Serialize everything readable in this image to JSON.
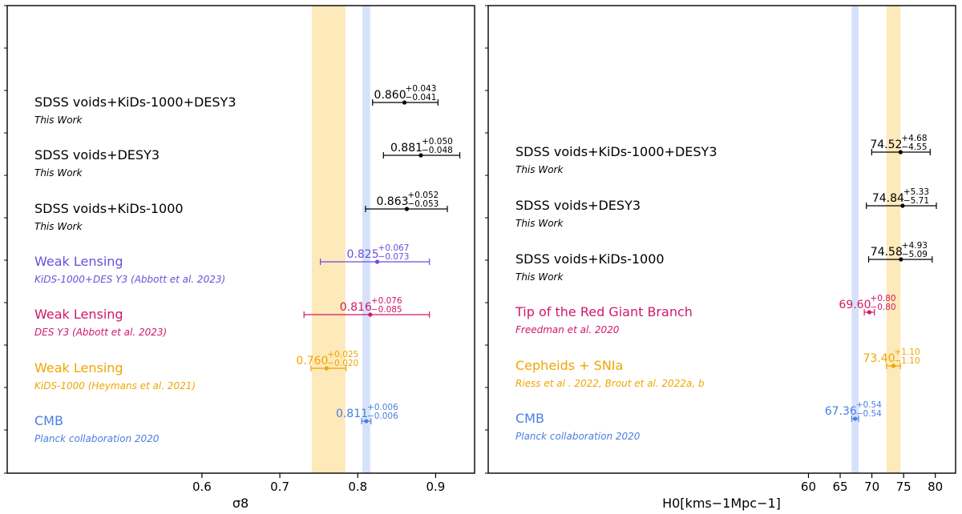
{
  "chart_data": [
    {
      "type": "scatter",
      "xlabel": "σ8",
      "xticks": [
        0.6,
        0.7,
        0.8,
        0.9
      ],
      "xlim": [
        0.35,
        0.95
      ],
      "bands": [
        {
          "center": 0.7625,
          "low": 0.741,
          "high": 0.784,
          "color": "#fde9b9"
        },
        {
          "center": 0.811,
          "low": 0.806,
          "high": 0.816,
          "color": "#d6e2fb"
        }
      ],
      "points": [
        {
          "label": "SDSS voids+KiDs-1000+DESY3",
          "reference": "This Work",
          "value": 0.86,
          "value_text": "0.860",
          "plus": "+0.043",
          "minus": "−0.041",
          "low": 0.819,
          "high": 0.903,
          "color": "#000000"
        },
        {
          "label": "SDSS voids+DESY3",
          "reference": "This Work",
          "value": 0.881,
          "value_text": "0.881",
          "plus": "+0.050",
          "minus": "−0.048",
          "low": 0.833,
          "high": 0.931,
          "color": "#000000"
        },
        {
          "label": "SDSS voids+KiDs-1000",
          "reference": "This Work",
          "value": 0.863,
          "value_text": "0.863",
          "plus": "+0.052",
          "minus": "−0.053",
          "low": 0.81,
          "high": 0.915,
          "color": "#000000"
        },
        {
          "label": "Weak Lensing",
          "reference": "KiDS-1000+DES Y3 (Abbott et al. 2023)",
          "value": 0.825,
          "value_text": "0.825",
          "plus": "+0.067",
          "minus": "−0.073",
          "low": 0.752,
          "high": 0.892,
          "color": "#6a4fdc"
        },
        {
          "label": "Weak Lensing",
          "reference": "DES Y3 (Abbott et al. 2023)",
          "value": 0.816,
          "value_text": "0.816",
          "plus": "+0.076",
          "minus": "−0.085",
          "low": 0.731,
          "high": 0.892,
          "color": "#d0186a"
        },
        {
          "label": "Weak Lensing",
          "reference": "KiDS-1000 (Heymans et al. 2021)",
          "value": 0.76,
          "value_text": "0.760",
          "plus": "+0.025",
          "minus": "−0.020",
          "low": 0.74,
          "high": 0.785,
          "color": "#f0a500"
        },
        {
          "label": "CMB",
          "reference": "Planck collaboration 2020",
          "value": 0.811,
          "value_text": "0.811",
          "plus": "+0.006",
          "minus": "−0.006",
          "low": 0.805,
          "high": 0.817,
          "color": "#4a7fe0"
        }
      ]
    },
    {
      "type": "scatter",
      "xlabel": "H0[kms−1Mpc−1]",
      "xticks": [
        60,
        65,
        70,
        75,
        80
      ],
      "xlim": [
        9.5,
        83.2
      ],
      "bands": [
        {
          "center": 67.36,
          "low": 66.8,
          "high": 67.9,
          "color": "#d6e2fb"
        },
        {
          "center": 73.4,
          "low": 72.3,
          "high": 74.5,
          "color": "#fde9b9"
        }
      ],
      "points": [
        {
          "label": "SDSS voids+KiDs-1000+DESY3",
          "reference": "This Work",
          "value": 74.52,
          "value_text": "74.52",
          "plus": "+4.68",
          "minus": "−4.55",
          "low": 69.97,
          "high": 79.2,
          "color": "#000000"
        },
        {
          "label": "SDSS voids+DESY3",
          "reference": "This Work",
          "value": 74.84,
          "value_text": "74.84",
          "plus": "+5.33",
          "minus": "−5.71",
          "low": 69.13,
          "high": 80.17,
          "color": "#000000"
        },
        {
          "label": "SDSS voids+KiDs-1000",
          "reference": "This Work",
          "value": 74.58,
          "value_text": "74.58",
          "plus": "+4.93",
          "minus": "−5.09",
          "low": 69.49,
          "high": 79.51,
          "color": "#000000"
        },
        {
          "label": "Tip of the Red Giant Branch",
          "reference": "Freedman et al. 2020",
          "value": 69.6,
          "value_text": "69.60",
          "plus": "+0.80",
          "minus": "−0.80",
          "low": 68.8,
          "high": 70.4,
          "color": "#d0186a"
        },
        {
          "label": "Cepheids + SNIa",
          "reference": "Riess et al . 2022, Brout et al. 2022a, b",
          "value": 73.4,
          "value_text": "73.40",
          "plus": "+1.10",
          "minus": "−1.10",
          "low": 72.3,
          "high": 74.5,
          "color": "#f0a500"
        },
        {
          "label": "CMB",
          "reference": "Planck collaboration 2020",
          "value": 67.36,
          "value_text": "67.36",
          "plus": "+0.54",
          "minus": "−0.54",
          "low": 66.82,
          "high": 67.9,
          "color": "#4a7fe0"
        }
      ]
    }
  ]
}
